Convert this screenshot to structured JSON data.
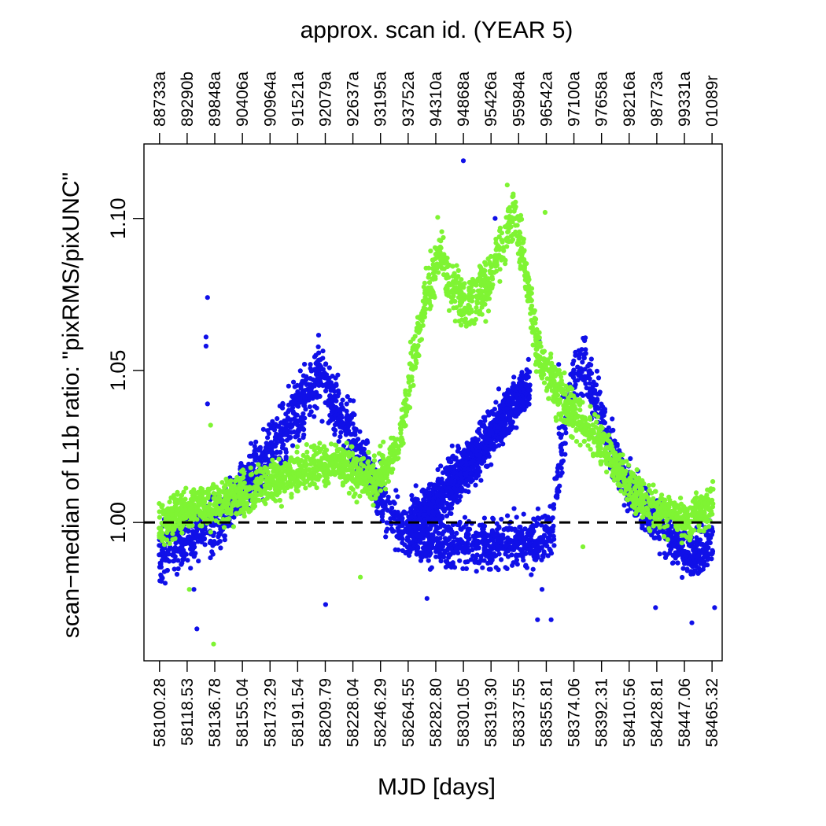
{
  "chart_data": {
    "type": "scatter",
    "title": "approx. scan id. (YEAR 5)",
    "xlabel": "MJD [days]",
    "ylabel": "scan−median of L1b ratio: \"pixRMS/pixUNC\"",
    "xlim": [
      58090.0,
      58472.0
    ],
    "ylim": [
      0.9545,
      1.1245
    ],
    "yticks": [
      1.0,
      1.05,
      1.1
    ],
    "ytick_labels": [
      "1.00",
      "1.05",
      "1.10"
    ],
    "x_ticks_bottom": [
      {
        "x": 58100.28,
        "label": "58100.28"
      },
      {
        "x": 58118.53,
        "label": "58118.53"
      },
      {
        "x": 58136.78,
        "label": "58136.78"
      },
      {
        "x": 58155.04,
        "label": "58155.04"
      },
      {
        "x": 58173.29,
        "label": "58173.29"
      },
      {
        "x": 58191.54,
        "label": "58191.54"
      },
      {
        "x": 58209.79,
        "label": "58209.79"
      },
      {
        "x": 58228.04,
        "label": "58228.04"
      },
      {
        "x": 58246.29,
        "label": "58246.29"
      },
      {
        "x": 58264.55,
        "label": "58264.55"
      },
      {
        "x": 58282.8,
        "label": "58282.80"
      },
      {
        "x": 58301.05,
        "label": "58301.05"
      },
      {
        "x": 58319.3,
        "label": "58319.30"
      },
      {
        "x": 58337.55,
        "label": "58337.55"
      },
      {
        "x": 58355.81,
        "label": "58355.81"
      },
      {
        "x": 58374.06,
        "label": "58374.06"
      },
      {
        "x": 58392.31,
        "label": "58392.31"
      },
      {
        "x": 58410.56,
        "label": "58410.56"
      },
      {
        "x": 58428.81,
        "label": "58428.81"
      },
      {
        "x": 58447.06,
        "label": "58447.06"
      },
      {
        "x": 58465.32,
        "label": "58465.32"
      }
    ],
    "x_ticks_top": [
      {
        "x": 58100.28,
        "label": "88733a"
      },
      {
        "x": 58118.53,
        "label": "89290b"
      },
      {
        "x": 58136.78,
        "label": "89848a"
      },
      {
        "x": 58155.04,
        "label": "90406a"
      },
      {
        "x": 58173.29,
        "label": "90964a"
      },
      {
        "x": 58191.54,
        "label": "91521a"
      },
      {
        "x": 58209.79,
        "label": "92079a"
      },
      {
        "x": 58228.04,
        "label": "92637a"
      },
      {
        "x": 58246.29,
        "label": "93195a"
      },
      {
        "x": 58264.55,
        "label": "93752a"
      },
      {
        "x": 58282.8,
        "label": "94310a"
      },
      {
        "x": 58301.05,
        "label": "94868a"
      },
      {
        "x": 58319.3,
        "label": "95426a"
      },
      {
        "x": 58337.55,
        "label": "95984a"
      },
      {
        "x": 58355.81,
        "label": "96542a"
      },
      {
        "x": 58374.06,
        "label": "97100a"
      },
      {
        "x": 58392.31,
        "label": "97658a"
      },
      {
        "x": 58410.56,
        "label": "98216a"
      },
      {
        "x": 58428.81,
        "label": "98773a"
      },
      {
        "x": 58447.06,
        "label": "99331a"
      },
      {
        "x": 58465.32,
        "label": "01089r"
      }
    ],
    "reference_line": {
      "y": 1.0,
      "style": "dashed",
      "color": "#000000"
    },
    "grid": false,
    "legend": "none",
    "series": [
      {
        "color": "#1010e8",
        "x": [
          58100,
          58110,
          58120,
          58130,
          58140,
          58150,
          58160,
          58170,
          58180,
          58190,
          58200,
          58205,
          58210,
          58220,
          58230,
          58240,
          58245,
          58250,
          58260,
          58270,
          58280,
          58290,
          58300,
          58310,
          58320,
          58330,
          58340,
          58350,
          58355,
          58360,
          58365,
          58370,
          58380,
          58390,
          58400,
          58410,
          58420,
          58430,
          58440,
          58450,
          58455,
          58460,
          58466
        ],
        "y": [
          0.99,
          0.992,
          0.995,
          0.998,
          1.0,
          1.007,
          1.014,
          1.02,
          1.028,
          1.036,
          1.044,
          1.047,
          1.045,
          1.035,
          1.025,
          1.017,
          1.01,
          1.004,
          0.998,
          0.995,
          0.994,
          0.993,
          0.993,
          0.993,
          0.993,
          0.994,
          0.993,
          0.993,
          0.994,
          0.999,
          1.02,
          1.042,
          1.053,
          1.038,
          1.022,
          1.012,
          1.005,
          1.0,
          0.995,
          0.99,
          0.99,
          0.99,
          0.995
        ],
        "spread": [
          0.009,
          0.009,
          0.009,
          0.009,
          0.009,
          0.009,
          0.009,
          0.009,
          0.01,
          0.01,
          0.01,
          0.01,
          0.01,
          0.01,
          0.01,
          0.009,
          0.009,
          0.009,
          0.008,
          0.008,
          0.008,
          0.008,
          0.008,
          0.008,
          0.008,
          0.008,
          0.008,
          0.008,
          0.008,
          0.009,
          0.01,
          0.01,
          0.01,
          0.009,
          0.008,
          0.008,
          0.008,
          0.008,
          0.008,
          0.008,
          0.008,
          0.008,
          0.009
        ],
        "branch": {
          "x": [
            58265,
            58275,
            58285,
            58295,
            58305,
            58315,
            58325,
            58335,
            58345
          ],
          "y": [
            0.998,
            1.003,
            1.008,
            1.014,
            1.02,
            1.026,
            1.032,
            1.04,
            1.045
          ],
          "spread": 0.008
        },
        "outliers": [
          [
            58132,
            1.074
          ],
          [
            58131,
            1.061
          ],
          [
            58131,
            1.058
          ],
          [
            58132,
            1.039
          ],
          [
            58123,
            0.978
          ],
          [
            58125,
            0.965
          ],
          [
            58210,
            0.973
          ],
          [
            58277,
            0.975
          ],
          [
            58301,
            1.119
          ],
          [
            58322,
            1.1
          ],
          [
            58353,
            0.978
          ],
          [
            58350,
            0.968
          ],
          [
            58359,
            0.968
          ],
          [
            58351,
            1.06
          ],
          [
            58364,
            1.052
          ],
          [
            58428,
            0.972
          ],
          [
            58452,
            0.967
          ],
          [
            58467,
            0.972
          ]
        ]
      },
      {
        "color": "#7ff433",
        "x": [
          58100,
          58110,
          58120,
          58130,
          58140,
          58150,
          58160,
          58170,
          58180,
          58190,
          58200,
          58210,
          58220,
          58230,
          58240,
          58250,
          58260,
          58265,
          58270,
          58275,
          58280,
          58285,
          58290,
          58300,
          58310,
          58320,
          58325,
          58330,
          58335,
          58340,
          58345,
          58350,
          58360,
          58370,
          58380,
          58390,
          58400,
          58410,
          58420,
          58430,
          58440,
          58450,
          58455,
          58460,
          58466
        ],
        "y": [
          1.0,
          1.002,
          1.004,
          1.005,
          1.006,
          1.008,
          1.01,
          1.012,
          1.014,
          1.016,
          1.018,
          1.019,
          1.02,
          1.017,
          1.014,
          1.017,
          1.03,
          1.045,
          1.06,
          1.072,
          1.08,
          1.09,
          1.08,
          1.073,
          1.075,
          1.08,
          1.09,
          1.097,
          1.098,
          1.09,
          1.075,
          1.057,
          1.046,
          1.038,
          1.033,
          1.027,
          1.02,
          1.013,
          1.007,
          1.004,
          1.002,
          1.0,
          1.003,
          1.004,
          1.006
        ],
        "spread": [
          0.007,
          0.007,
          0.007,
          0.007,
          0.007,
          0.007,
          0.007,
          0.007,
          0.007,
          0.007,
          0.007,
          0.007,
          0.007,
          0.007,
          0.007,
          0.007,
          0.007,
          0.008,
          0.008,
          0.008,
          0.009,
          0.009,
          0.009,
          0.009,
          0.009,
          0.009,
          0.009,
          0.009,
          0.009,
          0.009,
          0.009,
          0.008,
          0.008,
          0.008,
          0.007,
          0.007,
          0.007,
          0.007,
          0.007,
          0.007,
          0.007,
          0.007,
          0.007,
          0.007,
          0.007
        ],
        "outliers": [
          [
            58120,
            0.978
          ],
          [
            58134,
            1.032
          ],
          [
            58136,
            0.96
          ],
          [
            58233,
            0.982
          ],
          [
            58330,
            1.111
          ],
          [
            58355,
            1.102
          ],
          [
            58380,
            0.992
          ]
        ]
      }
    ]
  }
}
